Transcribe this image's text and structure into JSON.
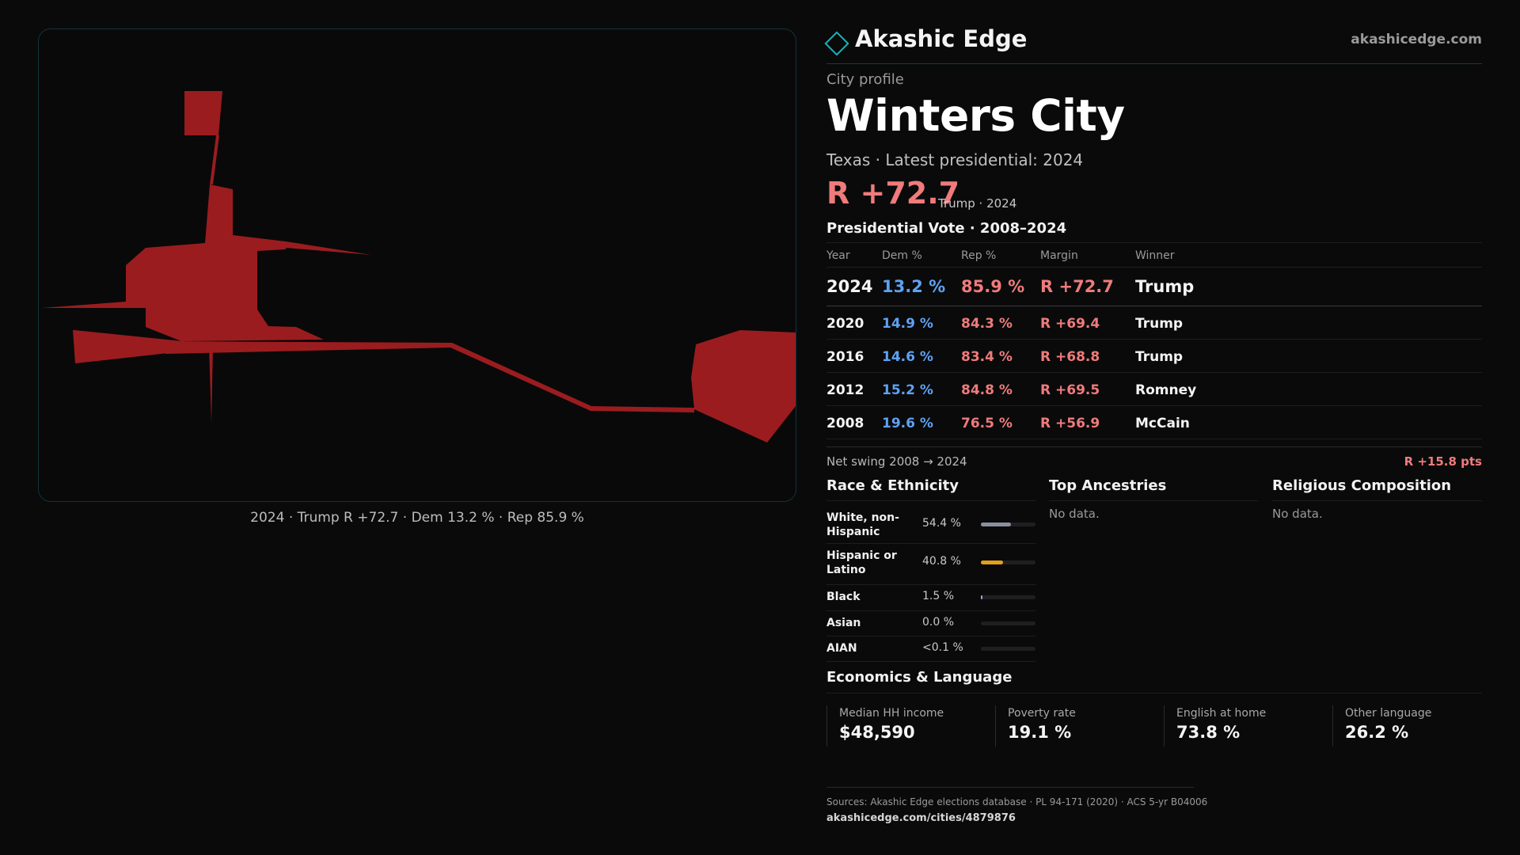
{
  "brand": {
    "name": "Akashic Edge",
    "url": "akashicedge.com"
  },
  "profile": {
    "kicker": "City profile",
    "city": "Winters City",
    "subline": "Texas · Latest presidential: 2024",
    "margin": "R +72.7",
    "margin_note": "Trump · 2024"
  },
  "map": {
    "caption": "2024 · Trump R +72.7 · Dem 13.2 % · Rep 85.9 %",
    "fill_color": "#9b1c1f"
  },
  "vote": {
    "title": "Presidential Vote · 2008–2024",
    "headers": {
      "year": "Year",
      "dem": "Dem %",
      "rep": "Rep %",
      "margin": "Margin",
      "winner": "Winner"
    },
    "rows": [
      {
        "year": "2024",
        "dem": "13.2 %",
        "rep": "85.9 %",
        "margin": "R +72.7",
        "winner": "Trump"
      },
      {
        "year": "2020",
        "dem": "14.9 %",
        "rep": "84.3 %",
        "margin": "R +69.4",
        "winner": "Trump"
      },
      {
        "year": "2016",
        "dem": "14.6 %",
        "rep": "83.4 %",
        "margin": "R +68.8",
        "winner": "Trump"
      },
      {
        "year": "2012",
        "dem": "15.2 %",
        "rep": "84.8 %",
        "margin": "R +69.5",
        "winner": "Romney"
      },
      {
        "year": "2008",
        "dem": "19.6 %",
        "rep": "76.5 %",
        "margin": "R +56.9",
        "winner": "McCain"
      }
    ],
    "swing_label": "Net swing 2008 → 2024",
    "swing_value": "R +15.8 pts"
  },
  "race": {
    "title": "Race & Ethnicity",
    "rows": [
      {
        "label": "White, non-Hispanic",
        "value": "54.4 %",
        "pct": 54.4,
        "color": "#8a8f9c"
      },
      {
        "label": "Hispanic or Latino",
        "value": "40.8 %",
        "pct": 40.8,
        "color": "#e0a11c"
      },
      {
        "label": "Black",
        "value": "1.5 %",
        "pct": 1.5,
        "color": "#9aa8d8"
      },
      {
        "label": "Asian",
        "value": "0.0 %",
        "pct": 0.0,
        "color": "#8a8f9c"
      },
      {
        "label": "AIAN",
        "value": "<0.1 %",
        "pct": 0.0,
        "color": "#8a8f9c"
      }
    ]
  },
  "ancestries": {
    "title": "Top Ancestries",
    "empty": "No data."
  },
  "religion": {
    "title": "Religious Composition",
    "empty": "No data."
  },
  "economics": {
    "title": "Economics & Language",
    "cells": [
      {
        "label": "Median HH income",
        "value": "$48,590"
      },
      {
        "label": "Poverty rate",
        "value": "19.1 %"
      },
      {
        "label": "English at home",
        "value": "73.8 %"
      },
      {
        "label": "Other language",
        "value": "26.2 %"
      }
    ]
  },
  "footer": {
    "sources": "Sources: Akashic Edge elections database · PL 94-171 (2020) · ACS 5-yr B04006",
    "url": "akashicedge.com/cities/4879876"
  },
  "colors": {
    "accent": "#1bb3b8",
    "rep": "#f07b7b",
    "dem": "#5ea2f2"
  }
}
